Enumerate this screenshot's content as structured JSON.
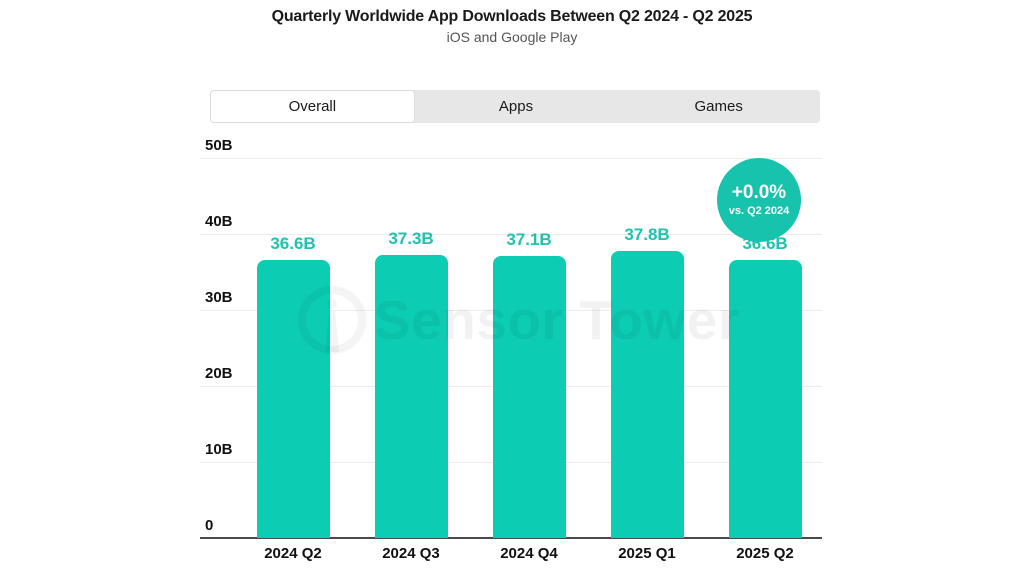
{
  "title": "Quarterly Worldwide App Downloads Between Q2 2024 - Q2 2025",
  "subtitle": "iOS and Google Play",
  "tabs": [
    {
      "label": "Overall",
      "active": true
    },
    {
      "label": "Apps",
      "active": false
    },
    {
      "label": "Games",
      "active": false
    }
  ],
  "badge": {
    "delta": "+0.0%",
    "caption": "vs. Q2 2024"
  },
  "watermark": {
    "text": "Sensor Tower"
  },
  "colors": {
    "bar": "#0cccb4",
    "value_label": "#1fc2ae",
    "badge_bg": "#17c3ad",
    "tab_inactive_bg": "#e7e7e7",
    "grid": "#ececec",
    "axis": "#4a4a4a"
  },
  "chart_data": {
    "type": "bar",
    "title": "Quarterly Worldwide App Downloads Between Q2 2024 - Q2 2025",
    "subtitle": "iOS and Google Play",
    "categories": [
      "2024 Q2",
      "2024 Q3",
      "2024 Q4",
      "2025 Q1",
      "2025 Q2"
    ],
    "values": [
      36.6,
      37.3,
      37.1,
      37.8,
      36.6
    ],
    "value_labels": [
      "36.6B",
      "37.3B",
      "37.1B",
      "37.8B",
      "36.6B"
    ],
    "unit": "billions of downloads",
    "ylim": [
      0,
      50
    ],
    "y_ticks": [
      {
        "label": "50B",
        "value": 50
      },
      {
        "label": "40B",
        "value": 40
      },
      {
        "label": "30B",
        "value": 30
      },
      {
        "label": "20B",
        "value": 20
      },
      {
        "label": "10B",
        "value": 10
      },
      {
        "label": "0",
        "value": 0
      }
    ],
    "grid": "horizontal",
    "legend": "none",
    "annotation": {
      "text": "+0.0% vs. Q2 2024",
      "position": "top-right"
    }
  }
}
